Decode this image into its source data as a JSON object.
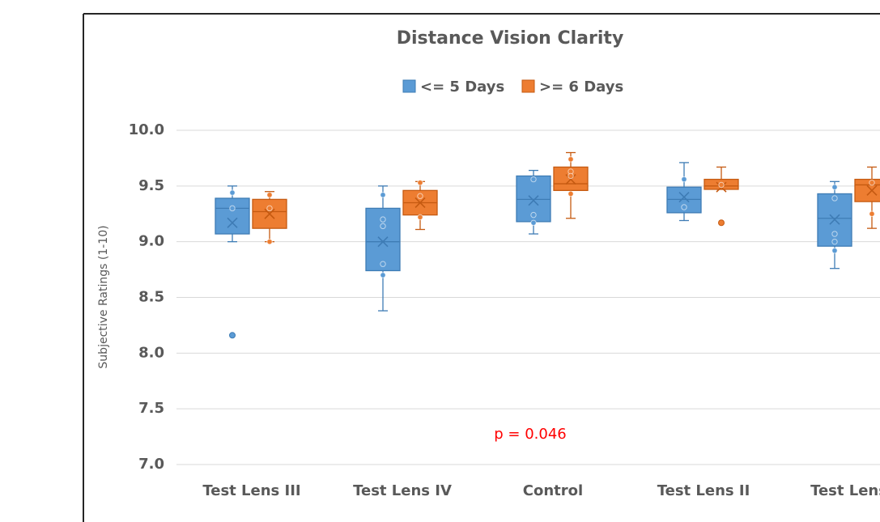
{
  "chart_data": {
    "type": "box",
    "title": "Distance Vision Clarity",
    "y_label": "Subjective Ratings (1-10)",
    "annotation": "p = 0.046",
    "annotation_color": "#ff0000",
    "categories": [
      "Test Lens III",
      "Test Lens IV",
      "Control",
      "Test Lens II",
      "Test Lens I"
    ],
    "ylim": [
      7.0,
      10.0
    ],
    "yticks": [
      {
        "value": 7.0,
        "label": "7.0"
      },
      7.5,
      {
        "value": 8.0,
        "label": "8.0"
      },
      8.5,
      {
        "value": 9.0,
        "label": "9.0"
      },
      9.5,
      {
        "value": 10.0,
        "label": "10.0"
      }
    ],
    "grid": true,
    "legend": "top",
    "series": [
      {
        "name": "<= 5 Days",
        "color": "#5b9bd5",
        "edge": "#3e7cb5",
        "boxes": [
          {
            "low": 9.0,
            "q1": 9.07,
            "median": 9.3,
            "q3": 9.39,
            "high": 9.5,
            "mean": 9.17,
            "points": [
              9.44,
              9.3
            ],
            "outliers": [
              8.16
            ]
          },
          {
            "low": 8.38,
            "q1": 8.74,
            "median": 9.0,
            "q3": 9.3,
            "high": 9.5,
            "mean": 9.0,
            "points": [
              9.42,
              9.2,
              9.14,
              8.8,
              8.7
            ],
            "outliers": []
          },
          {
            "low": 9.07,
            "q1": 9.18,
            "median": 9.38,
            "q3": 9.59,
            "high": 9.64,
            "mean": 9.37,
            "points": [
              9.56,
              9.24,
              9.17
            ],
            "outliers": []
          },
          {
            "low": 9.19,
            "q1": 9.26,
            "median": 9.38,
            "q3": 9.49,
            "high": 9.71,
            "mean": 9.4,
            "points": [
              9.56,
              9.31
            ],
            "outliers": []
          },
          {
            "low": 8.76,
            "q1": 8.96,
            "median": 9.21,
            "q3": 9.43,
            "high": 9.54,
            "mean": 9.2,
            "points": [
              9.49,
              9.39,
              9.07,
              9.0,
              8.92
            ],
            "outliers": []
          }
        ]
      },
      {
        "name": ">= 6 Days",
        "color": "#ed7d31",
        "edge": "#c55a11",
        "boxes": [
          {
            "low": 9.0,
            "q1": 9.12,
            "median": 9.27,
            "q3": 9.38,
            "high": 9.45,
            "mean": 9.25,
            "points": [
              9.42,
              9.3,
              9.0
            ],
            "outliers": []
          },
          {
            "low": 9.11,
            "q1": 9.24,
            "median": 9.35,
            "q3": 9.46,
            "high": 9.54,
            "mean": 9.35,
            "points": [
              9.53,
              9.41,
              9.22
            ],
            "outliers": []
          },
          {
            "low": 9.21,
            "q1": 9.46,
            "median": 9.52,
            "q3": 9.67,
            "high": 9.8,
            "mean": 9.56,
            "points": [
              9.74,
              9.63,
              9.59,
              9.43
            ],
            "outliers": []
          },
          {
            "low": 9.47,
            "q1": 9.47,
            "median": 9.5,
            "q3": 9.56,
            "high": 9.67,
            "mean": 9.49,
            "points": [
              9.51
            ],
            "outliers": [
              9.17
            ]
          },
          {
            "low": 9.12,
            "q1": 9.36,
            "median": 9.51,
            "q3": 9.56,
            "high": 9.67,
            "mean": 9.46,
            "points": [
              9.53,
              9.25
            ],
            "outliers": []
          }
        ]
      }
    ]
  }
}
